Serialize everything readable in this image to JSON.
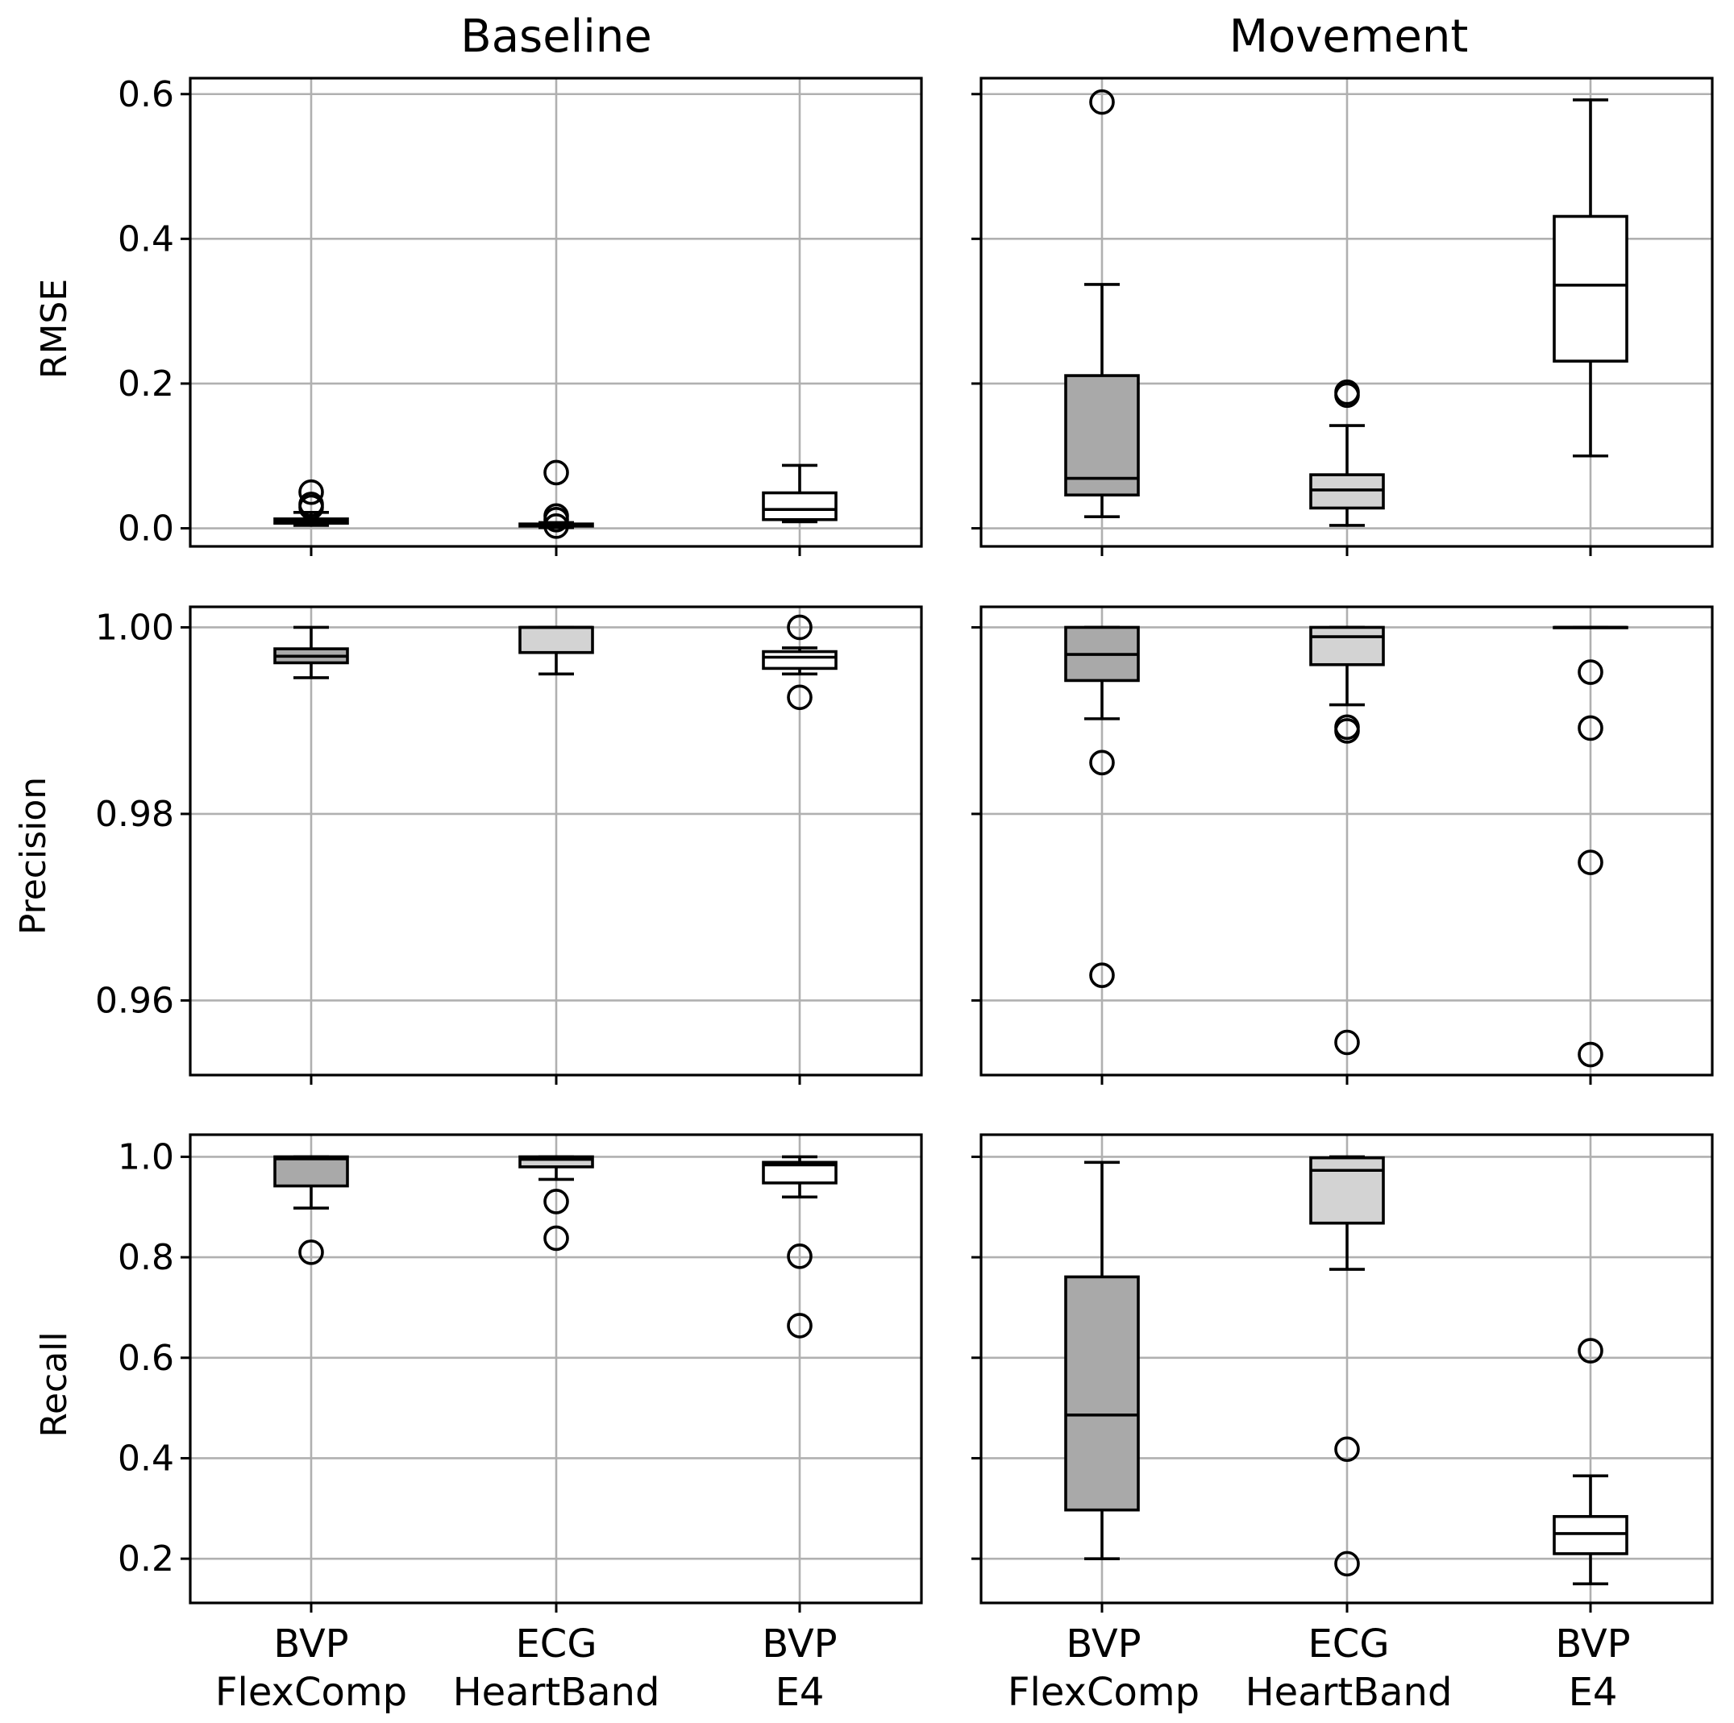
{
  "chart_data": {
    "type": "box",
    "columns": [
      "Baseline",
      "Movement"
    ],
    "categories": [
      [
        "BVP",
        "FlexComp"
      ],
      [
        "ECG",
        "HeartBand"
      ],
      [
        "BVP",
        "E4"
      ]
    ],
    "box_colors": [
      "#a9a9a9",
      "#d3d3d3",
      "#ffffff"
    ],
    "rows": [
      {
        "ylabel": "RMSE",
        "ylim": [
          -0.025,
          0.622
        ],
        "yticks": [
          0.0,
          0.2,
          0.4,
          0.6
        ],
        "ytick_labels": [
          "0.0",
          "0.2",
          "0.4",
          "0.6"
        ],
        "panels": [
          [
            {
              "whislo": 0.004,
              "q1": 0.007,
              "med": 0.011,
              "q3": 0.013,
              "whishi": 0.022,
              "fliers": [
                0.033,
                0.05,
                0.029
              ]
            },
            {
              "whislo": 0.001,
              "q1": 0.003,
              "med": 0.005,
              "q3": 0.006,
              "whishi": 0.008,
              "fliers": [
                0.077,
                0.017,
                0.003,
                0.012
              ]
            },
            {
              "whislo": 0.009,
              "q1": 0.012,
              "med": 0.026,
              "q3": 0.049,
              "whishi": 0.087,
              "fliers": []
            }
          ],
          [
            {
              "whislo": 0.016,
              "q1": 0.046,
              "med": 0.069,
              "q3": 0.211,
              "whishi": 0.337,
              "fliers": [
                0.589
              ]
            },
            {
              "whislo": 0.004,
              "q1": 0.028,
              "med": 0.053,
              "q3": 0.074,
              "whishi": 0.142,
              "fliers": [
                0.184,
                0.188
              ]
            },
            {
              "whislo": 0.1,
              "q1": 0.231,
              "med": 0.336,
              "q3": 0.431,
              "whishi": 0.592,
              "fliers": []
            }
          ]
        ]
      },
      {
        "ylabel": "Precision",
        "ylim": [
          0.952,
          1.0022
        ],
        "yticks": [
          0.96,
          0.98,
          1.0
        ],
        "ytick_labels": [
          "0.96",
          "0.98",
          "1.00"
        ],
        "panels": [
          [
            {
              "whislo": 0.9946,
              "q1": 0.9962,
              "med": 0.9969,
              "q3": 0.9977,
              "whishi": 1.0,
              "fliers": []
            },
            {
              "whislo": 0.995,
              "q1": 0.9973,
              "med": 1.0,
              "q3": 1.0,
              "whishi": 1.0,
              "fliers": []
            },
            {
              "whislo": 0.995,
              "q1": 0.9956,
              "med": 0.9968,
              "q3": 0.9974,
              "whishi": 0.9978,
              "fliers": [
                1.0,
                0.9925
              ]
            }
          ],
          [
            {
              "whislo": 0.9902,
              "q1": 0.9943,
              "med": 0.9971,
              "q3": 1.0,
              "whishi": 1.0,
              "fliers": [
                0.9855,
                0.9627
              ]
            },
            {
              "whislo": 0.9917,
              "q1": 0.996,
              "med": 0.999,
              "q3": 1.0,
              "whishi": 1.0,
              "fliers": [
                0.9889,
                0.9893,
                0.9555
              ]
            },
            {
              "whislo": 1.0,
              "q1": 1.0,
              "med": 1.0,
              "q3": 1.0,
              "whishi": 1.0,
              "fliers": [
                0.9952,
                0.9892,
                0.9748,
                0.9542
              ]
            }
          ]
        ]
      },
      {
        "ylabel": "Recall",
        "ylim": [
          0.112,
          1.044
        ],
        "yticks": [
          0.2,
          0.4,
          0.6,
          0.8,
          1.0
        ],
        "ytick_labels": [
          "0.2",
          "0.4",
          "0.6",
          "0.8",
          "1.0"
        ],
        "panels": [
          [
            {
              "whislo": 0.898,
              "q1": 0.942,
              "med": 0.996,
              "q3": 1.0,
              "whishi": 1.0,
              "fliers": [
                0.81
              ]
            },
            {
              "whislo": 0.955,
              "q1": 0.98,
              "med": 0.995,
              "q3": 1.0,
              "whishi": 1.0,
              "fliers": [
                0.911,
                0.838
              ]
            },
            {
              "whislo": 0.92,
              "q1": 0.948,
              "med": 0.984,
              "q3": 0.989,
              "whishi": 1.0,
              "fliers": [
                0.802,
                0.664
              ]
            }
          ],
          [
            {
              "whislo": 0.2,
              "q1": 0.297,
              "med": 0.486,
              "q3": 0.761,
              "whishi": 0.989,
              "fliers": []
            },
            {
              "whislo": 0.776,
              "q1": 0.868,
              "med": 0.973,
              "q3": 0.998,
              "whishi": 1.0,
              "fliers": [
                0.418,
                0.19
              ]
            },
            {
              "whislo": 0.15,
              "q1": 0.21,
              "med": 0.25,
              "q3": 0.284,
              "whishi": 0.365,
              "fliers": [
                0.614
              ]
            }
          ]
        ]
      }
    ]
  }
}
